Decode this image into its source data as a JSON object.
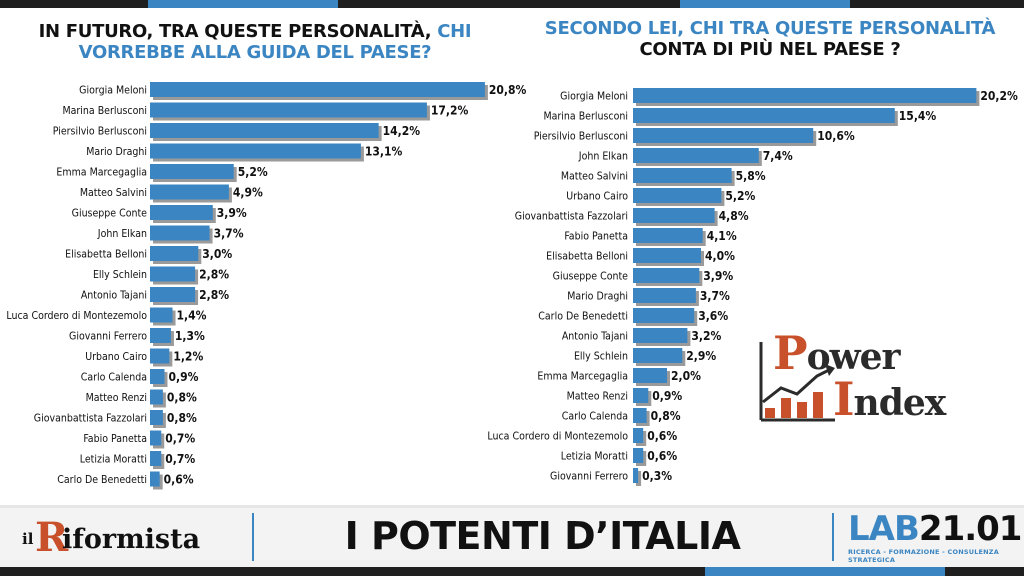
{
  "header": {
    "left_title_dark": "IN FUTURO, TRA QUESTE PERSONALITÀ,",
    "left_title_blue_1": "CHI",
    "left_title_blue_2": "VORREBBE ALLA GUIDA DEL PAESE?",
    "right_title_blue": "SECONDO LEI, CHI TRA QUESTE PERSONALITÀ",
    "right_title_dark": "CONTA DI PIÙ NEL PAESE ?"
  },
  "footer": {
    "riformista_il": "il",
    "riformista_r": "R",
    "riformista_rest": "iformista",
    "main_title": "I POTENTI D’ITALIA",
    "lab_part1": "LAB",
    "lab_part2": "21.01",
    "lab_subtitle": "RICERCA - FORMAZIONE - CONSULENZA STRATEGICA"
  },
  "power_index": {
    "word1_first": "P",
    "word1_rest": "ower",
    "word2_first": "I",
    "word2_rest": "ndex",
    "accent_color": "#c8502a"
  },
  "colors": {
    "bar": "#3b86c2",
    "bar_shadow": "#9a9a9a",
    "accent_blue": "#3b86c2"
  },
  "chart_data": [
    {
      "type": "bar",
      "orientation": "horizontal",
      "title": "IN FUTURO, TRA QUESTE PERSONALITÀ, CHI VORREBBE ALLA GUIDA DEL PAESE?",
      "categories": [
        "Giorgia Meloni",
        "Marina Berlusconi",
        "Piersilvio Berlusconi",
        "Mario Draghi",
        "Emma Marcegaglia",
        "Matteo Salvini",
        "Giuseppe Conte",
        "John Elkan",
        "Elisabetta Belloni",
        "Elly Schlein",
        "Antonio Tajani",
        "Luca Cordero di Montezemolo",
        "Giovanni Ferrero",
        "Urbano Cairo",
        "Carlo Calenda",
        "Matteo Renzi",
        "Giovanbattista Fazzolari",
        "Fabio Panetta",
        "Letizia Moratti",
        "Carlo De Benedetti"
      ],
      "values": [
        20.8,
        17.2,
        14.2,
        13.1,
        5.2,
        4.9,
        3.9,
        3.7,
        3.0,
        2.8,
        2.8,
        1.4,
        1.3,
        1.2,
        0.9,
        0.8,
        0.8,
        0.7,
        0.7,
        0.6
      ],
      "labels": [
        "20,8%",
        "17,2%",
        "14,2%",
        "13,1%",
        "5,2%",
        "4,9%",
        "3,9%",
        "3,7%",
        "3,0%",
        "2,8%",
        "2,8%",
        "1,4%",
        "1,3%",
        "1,2%",
        "0,9%",
        "0,8%",
        "0,8%",
        "0,7%",
        "0,7%",
        "0,6%"
      ],
      "unit": "%"
    },
    {
      "type": "bar",
      "orientation": "horizontal",
      "title": "SECONDO LEI, CHI TRA QUESTE PERSONALITÀ CONTA DI PIÙ NEL PAESE ?",
      "categories": [
        "Giorgia Meloni",
        "Marina Berlusconi",
        "Piersilvio Berlusconi",
        "John Elkan",
        "Matteo Salvini",
        "Urbano Cairo",
        "Giovanbattista Fazzolari",
        "Fabio Panetta",
        "Elisabetta Belloni",
        "Giuseppe Conte",
        "Mario Draghi",
        "Carlo De Benedetti",
        "Antonio Tajani",
        "Elly Schlein",
        "Emma Marcegaglia",
        "Matteo Renzi",
        "Carlo Calenda",
        "Luca Cordero di Montezemolo",
        "Letizia Moratti",
        "Giovanni Ferrero"
      ],
      "values": [
        20.2,
        15.4,
        10.6,
        7.4,
        5.8,
        5.2,
        4.8,
        4.1,
        4.0,
        3.9,
        3.7,
        3.6,
        3.2,
        2.9,
        2.0,
        0.9,
        0.8,
        0.6,
        0.6,
        0.3
      ],
      "labels": [
        "20,2%",
        "15,4%",
        "10,6%",
        "7,4%",
        "5,8%",
        "5,2%",
        "4,8%",
        "4,1%",
        "4,0%",
        "3,9%",
        "3,7%",
        "3,6%",
        "3,2%",
        "2,9%",
        "2,0%",
        "0,9%",
        "0,8%",
        "0,6%",
        "0,6%",
        "0,3%"
      ],
      "unit": "%"
    }
  ]
}
